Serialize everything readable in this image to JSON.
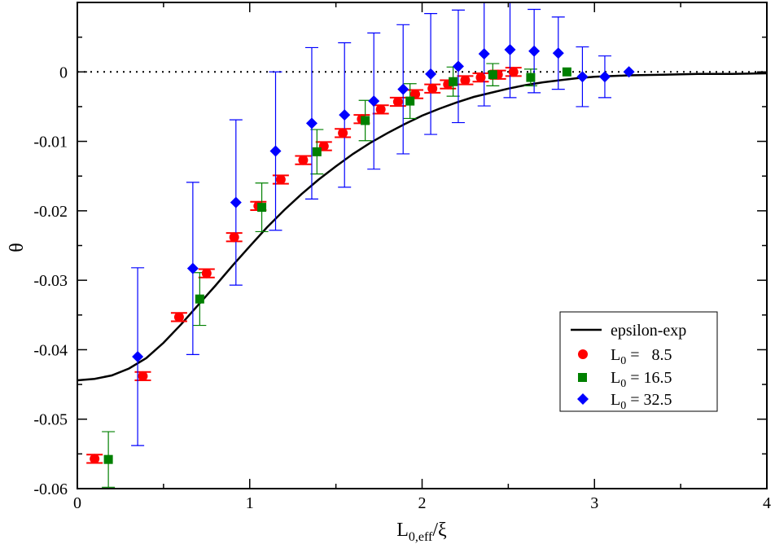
{
  "chart_data": {
    "type": "scatter",
    "title": "",
    "xlabel": {
      "main": "L",
      "sub": "0,eff",
      "suffix": "/ξ"
    },
    "ylabel": "θ",
    "xlim": [
      0,
      4
    ],
    "ylim": [
      -0.06,
      0.01
    ],
    "x_ticks": [
      0,
      1,
      2,
      3,
      4
    ],
    "x_tick_labels": [
      "0",
      "1",
      "2",
      "3",
      "4"
    ],
    "y_ticks": [
      -0.06,
      -0.05,
      -0.04,
      -0.03,
      -0.02,
      -0.01,
      0
    ],
    "y_tick_labels": [
      "-0.06",
      "-0.05",
      "-0.04",
      "-0.03",
      "-0.02",
      "-0.01",
      "0"
    ],
    "grid": false,
    "reference_line": {
      "y": 0,
      "style": "dotted"
    },
    "legend_position": "bottom-right",
    "curve": {
      "name": "epsilon-exp",
      "color": "#000000",
      "points": [
        [
          0,
          -0.0444
        ],
        [
          0.1,
          -0.0442
        ],
        [
          0.2,
          -0.0437
        ],
        [
          0.3,
          -0.0427
        ],
        [
          0.4,
          -0.0412
        ],
        [
          0.5,
          -0.039
        ],
        [
          0.6,
          -0.0364
        ],
        [
          0.7,
          -0.0336
        ],
        [
          0.8,
          -0.0308
        ],
        [
          0.9,
          -0.0279
        ],
        [
          1.0,
          -0.0251
        ],
        [
          1.1,
          -0.0224
        ],
        [
          1.2,
          -0.0199
        ],
        [
          1.3,
          -0.0176
        ],
        [
          1.4,
          -0.0155
        ],
        [
          1.5,
          -0.0136
        ],
        [
          1.6,
          -0.0118
        ],
        [
          1.7,
          -0.0102
        ],
        [
          1.8,
          -0.0088
        ],
        [
          1.9,
          -0.0075
        ],
        [
          2.0,
          -0.0063
        ],
        [
          2.1,
          -0.0053
        ],
        [
          2.2,
          -0.0044
        ],
        [
          2.3,
          -0.0036
        ],
        [
          2.4,
          -0.003
        ],
        [
          2.5,
          -0.0024
        ],
        [
          2.6,
          -0.0019
        ],
        [
          2.7,
          -0.0015
        ],
        [
          2.8,
          -0.0012
        ],
        [
          2.9,
          -0.0009
        ],
        [
          3.0,
          -0.0007
        ],
        [
          3.2,
          -0.0005
        ],
        [
          3.4,
          -0.0004
        ],
        [
          3.6,
          -0.0003
        ],
        [
          3.8,
          -0.0003
        ],
        [
          4.0,
          -0.0002
        ]
      ]
    },
    "series": [
      {
        "name_main": "L",
        "name_sub": "0",
        "name_rest": " =   8.5",
        "marker": "circle",
        "color": "#ff0000",
        "points": [
          {
            "x": 0.1,
            "y": -0.0557,
            "err": 0.0006
          },
          {
            "x": 0.38,
            "y": -0.0438,
            "err": 0.0006
          },
          {
            "x": 0.59,
            "y": -0.0353,
            "err": 0.0006
          },
          {
            "x": 0.75,
            "y": -0.029,
            "err": 0.0006
          },
          {
            "x": 0.91,
            "y": -0.0238,
            "err": 0.0006
          },
          {
            "x": 1.05,
            "y": -0.0193,
            "err": 0.0006
          },
          {
            "x": 1.18,
            "y": -0.0155,
            "err": 0.0006
          },
          {
            "x": 1.31,
            "y": -0.0127,
            "err": 0.0006
          },
          {
            "x": 1.43,
            "y": -0.0107,
            "err": 0.0006
          },
          {
            "x": 1.54,
            "y": -0.0088,
            "err": 0.0006
          },
          {
            "x": 1.65,
            "y": -0.0068,
            "err": 0.0006
          },
          {
            "x": 1.76,
            "y": -0.0054,
            "err": 0.0006
          },
          {
            "x": 1.86,
            "y": -0.0043,
            "err": 0.0006
          },
          {
            "x": 1.96,
            "y": -0.0032,
            "err": 0.0006
          },
          {
            "x": 2.06,
            "y": -0.0024,
            "err": 0.0006
          },
          {
            "x": 2.15,
            "y": -0.0018,
            "err": 0.0006
          },
          {
            "x": 2.25,
            "y": -0.0012,
            "err": 0.0006
          },
          {
            "x": 2.34,
            "y": -0.0008,
            "err": 0.0006
          },
          {
            "x": 2.44,
            "y": -0.0004,
            "err": 0.0006
          },
          {
            "x": 2.53,
            "y": 0.0,
            "err": 0.0006
          }
        ]
      },
      {
        "name_main": "L",
        "name_sub": "0",
        "name_rest": " = 16.5",
        "marker": "square",
        "color": "#008000",
        "points": [
          {
            "x": 0.18,
            "y": -0.0558,
            "err": 0.004
          },
          {
            "x": 0.71,
            "y": -0.0327,
            "err": 0.0038
          },
          {
            "x": 1.07,
            "y": -0.0195,
            "err": 0.0035
          },
          {
            "x": 1.39,
            "y": -0.0115,
            "err": 0.0032
          },
          {
            "x": 1.67,
            "y": -0.007,
            "err": 0.0029
          },
          {
            "x": 1.93,
            "y": -0.0042,
            "err": 0.0025
          },
          {
            "x": 2.18,
            "y": -0.0014,
            "err": 0.0021
          },
          {
            "x": 2.41,
            "y": -0.0004,
            "err": 0.0016
          },
          {
            "x": 2.63,
            "y": -0.0008,
            "err": 0.0012
          },
          {
            "x": 2.84,
            "y": 0.0,
            "err": 0.0
          }
        ]
      },
      {
        "name_main": "L",
        "name_sub": "0",
        "name_rest": " = 32.5",
        "marker": "diamond",
        "color": "#0000ff",
        "points": [
          {
            "x": 0.35,
            "y": -0.041,
            "err": 0.0128
          },
          {
            "x": 0.67,
            "y": -0.0283,
            "err": 0.0124
          },
          {
            "x": 0.92,
            "y": -0.0188,
            "err": 0.0119
          },
          {
            "x": 1.15,
            "y": -0.0114,
            "err": 0.0114
          },
          {
            "x": 1.36,
            "y": -0.0074,
            "err": 0.0109
          },
          {
            "x": 1.55,
            "y": -0.0062,
            "err": 0.0104
          },
          {
            "x": 1.72,
            "y": -0.0042,
            "err": 0.0098
          },
          {
            "x": 1.89,
            "y": -0.0025,
            "err": 0.0093
          },
          {
            "x": 2.05,
            "y": -0.0003,
            "err": 0.0087
          },
          {
            "x": 2.21,
            "y": 0.0008,
            "err": 0.0081
          },
          {
            "x": 2.36,
            "y": 0.0026,
            "err": 0.0075
          },
          {
            "x": 2.51,
            "y": 0.0032,
            "err": 0.0069
          },
          {
            "x": 2.65,
            "y": 0.003,
            "err": 0.006
          },
          {
            "x": 2.79,
            "y": 0.0027,
            "err": 0.0052
          },
          {
            "x": 2.93,
            "y": -0.0007,
            "err": 0.0043
          },
          {
            "x": 3.06,
            "y": -0.0007,
            "err": 0.003
          },
          {
            "x": 3.2,
            "y": 0.0,
            "err": 0.0
          }
        ]
      }
    ]
  }
}
